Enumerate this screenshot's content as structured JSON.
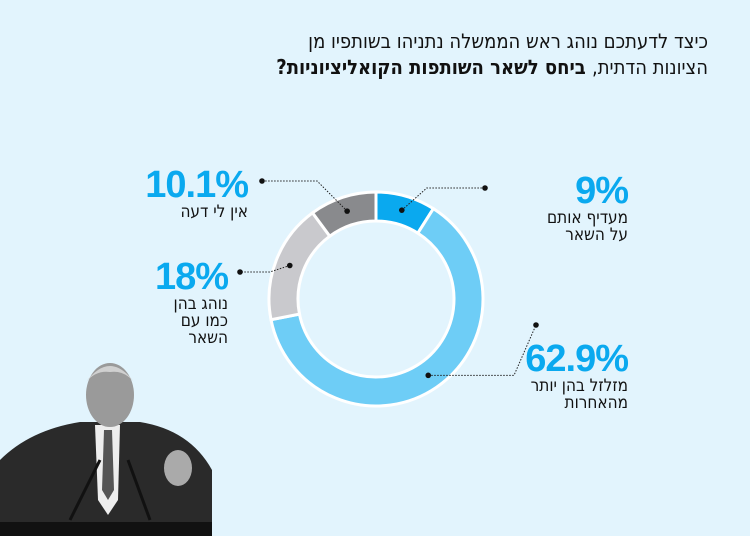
{
  "title": {
    "line1": "כיצד לדעתכם נוהג ראש הממשלה נתניהו בשותפיו מן",
    "line2_regular": "הציונות הדתית,",
    "line2_bold": " ביחס לשאר השותפות הקואליציוניות?"
  },
  "chart_data": {
    "type": "pie",
    "donut": true,
    "title": "כיצד לדעתכם נוהג ראש הממשלה נתניהו בשותפיו מן הציונות הדתית, ביחס לשאר השותפות הקואליציוניות?",
    "unit": "%",
    "slices": [
      {
        "label": "מעדיף אותם על השאר",
        "lines": [
          "מעדיף אותם",
          "על השאר"
        ],
        "value": 9,
        "display": "9%",
        "color": "#0aa9ef"
      },
      {
        "label": "מזלזל בהן יותר מהאחרות",
        "lines": [
          "מזלזל בהן יותר",
          "מהאחרות"
        ],
        "value": 62.9,
        "display": "62.9%",
        "color": "#6ecdf6"
      },
      {
        "label": "נוהג בהן כמו עם השאר",
        "lines": [
          "נוהג בהן",
          "כמו עם",
          "השאר"
        ],
        "value": 18,
        "display": "18%",
        "color": "#c9c9cd"
      },
      {
        "label": "אין לי דעה",
        "lines": [
          "אין לי דעה"
        ],
        "value": 10.1,
        "display": "10.1%",
        "color": "#898a8d"
      }
    ],
    "start": "top",
    "direction": "clockwise"
  }
}
